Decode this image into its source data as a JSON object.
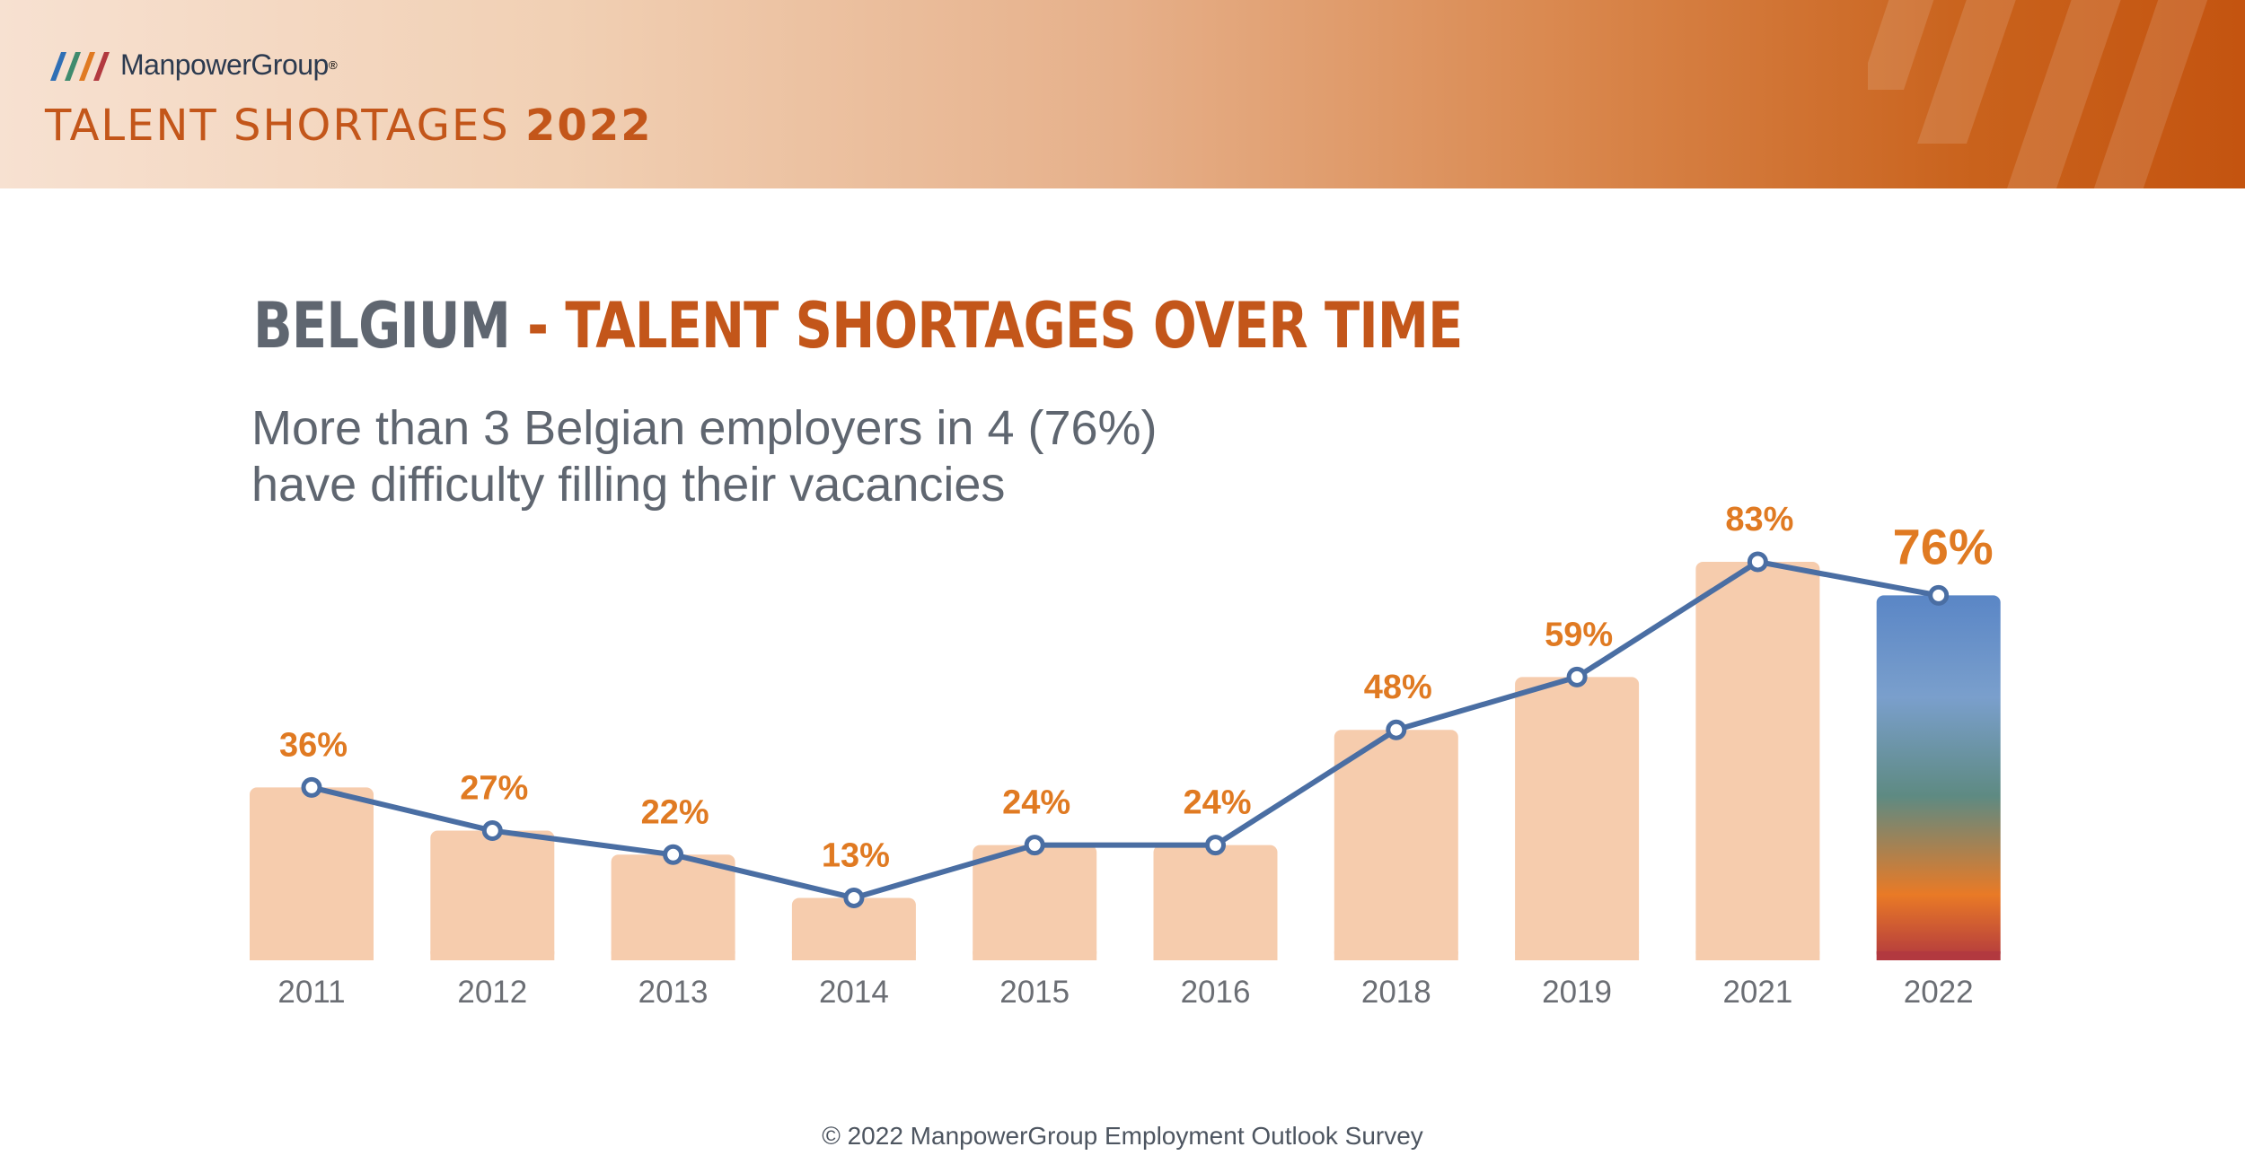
{
  "header": {
    "brand": "ManpowerGroup",
    "report_title": "TALENT SHORTAGES",
    "report_year": "2022"
  },
  "title": {
    "country": "BELGIUM",
    "separator": " - ",
    "topic": "TALENT SHORTAGES OVER TIME"
  },
  "subtitle_lines": [
    "More than 3 Belgian employers in 4 (76%)",
    "have difficulty filling their vacancies"
  ],
  "footer": "© 2022 ManpowerGroup Employment Outlook Survey",
  "colors": {
    "bar": "#f6ccad",
    "line": "#4a6ea3",
    "label": "#e07a22",
    "axis_text": "#6b6e74",
    "highlight_gradient": [
      "#5a86c6",
      "#7a9fcc",
      "#5e8a82",
      "#e97a26",
      "#b2393f"
    ]
  },
  "chart_data": {
    "type": "bar",
    "categories": [
      "2011",
      "2012",
      "2013",
      "2014",
      "2015",
      "2016",
      "2018",
      "2019",
      "2021",
      "2022"
    ],
    "values": [
      36,
      27,
      22,
      13,
      24,
      24,
      48,
      59,
      83,
      76
    ],
    "labels": [
      "36%",
      "27%",
      "22%",
      "13%",
      "24%",
      "24%",
      "48%",
      "59%",
      "83%",
      "76%"
    ],
    "overlay_line": true,
    "highlight_category": "2022",
    "ylim": [
      0,
      100
    ],
    "grid": false,
    "legend": "none",
    "xlabel": "",
    "ylabel": ""
  }
}
